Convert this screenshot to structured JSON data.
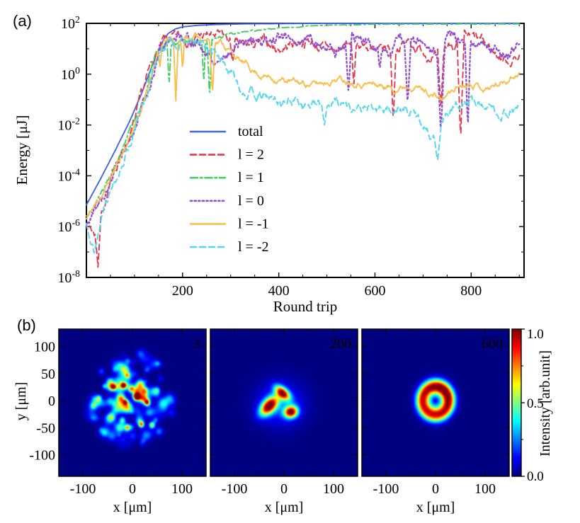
{
  "panel_a": {
    "label": "(a)",
    "x_ticks": [
      200,
      400,
      600,
      800
    ],
    "x_minor_step": 50,
    "y_tick_base": "10",
    "y_tick_exponents": [
      2,
      0,
      -2,
      -4,
      -6,
      -8
    ],
    "y_minor_exponents": [
      1,
      -1,
      -3,
      -5,
      -7
    ]
  },
  "panel_b": {
    "label": "(b)",
    "xlabel": "x [μm]",
    "ylabel": "y [μm]",
    "x_ticks": [
      -100,
      0,
      100
    ],
    "y_ticks": [
      100,
      50,
      0,
      -50,
      -100
    ],
    "minor_step": 50,
    "frame_label_color": "#E8751A",
    "colorbar": {
      "label": "Intensity [arb.unit]",
      "tick_labels": [
        "1.0",
        "0.5",
        "0.0"
      ],
      "tick_values": [
        1.0,
        0.5,
        0.0
      ],
      "minor_tick_values": [
        0.25,
        0.75
      ]
    }
  },
  "chart_data": [
    {
      "type": "line",
      "title": "",
      "xlabel": "Round trip",
      "ylabel": "Energy [μJ]",
      "x_range": [
        0,
        910
      ],
      "y_scale": "log",
      "y_log_range_exponents": [
        -8,
        2
      ],
      "grid": false,
      "legend_position": "inside center-left",
      "series": [
        {
          "name": "total",
          "color": "#4365E6",
          "style": "solid",
          "seed": 1,
          "noise": 0,
          "keypoints_log10": [
            [
              0,
              -5.15
            ],
            [
              30,
              -4.1
            ],
            [
              60,
              -3.0
            ],
            [
              90,
              -1.85
            ],
            [
              115,
              -0.75
            ],
            [
              135,
              0.25
            ],
            [
              150,
              0.95
            ],
            [
              160,
              1.35
            ],
            [
              170,
              1.6
            ],
            [
              185,
              1.78
            ],
            [
              200,
              1.86
            ],
            [
              230,
              1.92
            ],
            [
              270,
              1.955
            ],
            [
              330,
              1.98
            ],
            [
              450,
              1.995
            ],
            [
              900,
              2.005
            ]
          ]
        },
        {
          "name": "l = 2",
          "color": "#E23A4E",
          "style": "dashed",
          "seed": 7,
          "noise": 0.22,
          "keypoints_log10": [
            [
              0,
              -5.8
            ],
            [
              20,
              -6.3
            ],
            [
              30,
              -5.5
            ],
            [
              60,
              -3.7
            ],
            [
              100,
              -1.9
            ],
            [
              140,
              0.6
            ],
            [
              160,
              1.2
            ],
            [
              200,
              1.4
            ],
            [
              240,
              1.5
            ],
            [
              280,
              1.45
            ],
            [
              310,
              1.1
            ],
            [
              340,
              1.05
            ],
            [
              370,
              1.2
            ],
            [
              400,
              1.0
            ],
            [
              430,
              1.25
            ],
            [
              460,
              1.35
            ],
            [
              490,
              1.05
            ],
            [
              520,
              0.85
            ],
            [
              550,
              1.25
            ],
            [
              580,
              1.15
            ],
            [
              610,
              0.75
            ],
            [
              640,
              1.1
            ],
            [
              670,
              1.25
            ],
            [
              700,
              0.95
            ],
            [
              730,
              0.65
            ],
            [
              760,
              1.2
            ],
            [
              790,
              1.35
            ],
            [
              820,
              1.25
            ],
            [
              850,
              0.8
            ],
            [
              875,
              0.55
            ],
            [
              900,
              0.7
            ]
          ],
          "spikes": [
            [
              24,
              -7.6,
              6
            ],
            [
              304,
              0.45,
              5
            ],
            [
              556,
              -0.55,
              5
            ],
            [
              638,
              -1.9,
              6
            ],
            [
              737,
              -1.4,
              6
            ],
            [
              778,
              -2.6,
              7
            ]
          ]
        },
        {
          "name": "l = 1",
          "color": "#44CC66",
          "style": "dashdot",
          "seed": 3,
          "noise": 0.12,
          "noise_taper": true,
          "keypoints_log10": [
            [
              0,
              -5.6
            ],
            [
              40,
              -4.4
            ],
            [
              80,
              -2.8
            ],
            [
              120,
              -1.0
            ],
            [
              145,
              0.7
            ],
            [
              165,
              1.15
            ],
            [
              200,
              1.3
            ],
            [
              240,
              1.35
            ],
            [
              280,
              1.5
            ],
            [
              320,
              1.62
            ],
            [
              360,
              1.72
            ],
            [
              400,
              1.8
            ],
            [
              450,
              1.88
            ],
            [
              500,
              1.93
            ],
            [
              560,
              1.955
            ],
            [
              640,
              1.97
            ],
            [
              900,
              1.975
            ]
          ],
          "spikes": [
            [
              172,
              -0.5,
              4
            ],
            [
              244,
              -0.4,
              4
            ],
            [
              256,
              -0.95,
              5
            ]
          ]
        },
        {
          "name": "l = 0",
          "color": "#944FCE",
          "style": "dotted",
          "seed": 5,
          "noise": 0.24,
          "keypoints_log10": [
            [
              0,
              -6.0
            ],
            [
              40,
              -4.6
            ],
            [
              80,
              -3.0
            ],
            [
              120,
              -1.2
            ],
            [
              150,
              0.8
            ],
            [
              170,
              1.45
            ],
            [
              200,
              1.55
            ],
            [
              225,
              1.3
            ],
            [
              245,
              0.9
            ],
            [
              265,
              0.55
            ],
            [
              285,
              0.8
            ],
            [
              310,
              1.2
            ],
            [
              340,
              1.35
            ],
            [
              370,
              1.3
            ],
            [
              400,
              1.45
            ],
            [
              430,
              1.3
            ],
            [
              460,
              1.5
            ],
            [
              490,
              1.2
            ],
            [
              520,
              0.95
            ],
            [
              550,
              1.35
            ],
            [
              580,
              1.25
            ],
            [
              610,
              0.85
            ],
            [
              640,
              1.25
            ],
            [
              670,
              1.4
            ],
            [
              700,
              1.1
            ],
            [
              730,
              0.75
            ],
            [
              760,
              1.3
            ],
            [
              790,
              1.45
            ],
            [
              820,
              1.35
            ],
            [
              850,
              1.0
            ],
            [
              875,
              0.8
            ],
            [
              900,
              1.1
            ]
          ],
          "spikes": [
            [
              545,
              -0.8,
              6
            ],
            [
              610,
              0.2,
              4
            ],
            [
              668,
              -1.2,
              7
            ],
            [
              737,
              -2.3,
              8
            ],
            [
              793,
              -2.2,
              6
            ]
          ]
        },
        {
          "name": "l = -1",
          "color": "#F9BE4B",
          "style": "solid",
          "seed": 11,
          "noise": 0.14,
          "keypoints_log10": [
            [
              0,
              -5.7
            ],
            [
              40,
              -4.5
            ],
            [
              80,
              -2.9
            ],
            [
              120,
              -1.1
            ],
            [
              145,
              0.7
            ],
            [
              165,
              1.3
            ],
            [
              200,
              1.4
            ],
            [
              240,
              1.45
            ],
            [
              280,
              1.3
            ],
            [
              320,
              0.5
            ],
            [
              360,
              0.0
            ],
            [
              400,
              -0.2
            ],
            [
              440,
              -0.35
            ],
            [
              480,
              -0.4
            ],
            [
              520,
              -0.15
            ],
            [
              560,
              -0.25
            ],
            [
              600,
              -0.4
            ],
            [
              640,
              -0.55
            ],
            [
              680,
              -0.35
            ],
            [
              700,
              -0.6
            ],
            [
              740,
              -1.0
            ],
            [
              770,
              -0.5
            ],
            [
              800,
              -0.25
            ],
            [
              830,
              -0.55
            ],
            [
              860,
              -0.35
            ],
            [
              900,
              0.1
            ]
          ],
          "spikes": [
            [
              139,
              0.35,
              4
            ],
            [
              153,
              0.3,
              4
            ],
            [
              186,
              -1.05,
              5
            ],
            [
              200,
              0.15,
              4
            ],
            [
              262,
              -0.8,
              6
            ]
          ]
        },
        {
          "name": "l = -2",
          "color": "#53D6EF",
          "style": "dashed",
          "seed": 13,
          "noise": 0.22,
          "keypoints_log10": [
            [
              0,
              -5.9
            ],
            [
              20,
              -6.6
            ],
            [
              40,
              -4.8
            ],
            [
              80,
              -3.1
            ],
            [
              120,
              -1.3
            ],
            [
              145,
              0.6
            ],
            [
              165,
              1.15
            ],
            [
              200,
              1.25
            ],
            [
              240,
              1.1
            ],
            [
              280,
              0.6
            ],
            [
              320,
              -0.5
            ],
            [
              360,
              -0.9
            ],
            [
              400,
              -1.1
            ],
            [
              440,
              -1.0
            ],
            [
              480,
              -1.3
            ],
            [
              520,
              -1.0
            ],
            [
              560,
              -1.35
            ],
            [
              600,
              -1.5
            ],
            [
              640,
              -1.3
            ],
            [
              680,
              -1.6
            ],
            [
              720,
              -2.3
            ],
            [
              745,
              -1.5
            ],
            [
              780,
              -1.2
            ],
            [
              820,
              -1.1
            ],
            [
              860,
              -1.5
            ],
            [
              900,
              -1.3
            ]
          ],
          "spikes": [
            [
              16,
              -7.1,
              5
            ],
            [
              495,
              -2.0,
              6
            ],
            [
              730,
              -3.45,
              9
            ]
          ]
        }
      ]
    },
    {
      "type": "heatmap",
      "colormap": "jet",
      "xlabel": "x [μm]",
      "ylabel": "y [μm]",
      "value_label": "Intensity [arb.unit]",
      "value_range": [
        0.0,
        1.0
      ],
      "frames": [
        {
          "label": "3",
          "type": "speckle",
          "seed": 42,
          "n_spots": 110,
          "disk_radius": 88,
          "hot_spots": [
            [
              9,
              7,
              4.5,
              1.0
            ],
            [
              -18,
              28,
              4.2,
              0.88
            ],
            [
              30,
              -4,
              4,
              0.78
            ],
            [
              18,
              -44,
              4,
              0.7
            ],
            [
              -10,
              -50,
              4,
              0.65
            ],
            [
              -38,
              25,
              4,
              0.6
            ]
          ]
        },
        {
          "label": "200",
          "type": "blobs",
          "blobs": [
            [
              -30,
              -10,
              15,
              8.5,
              42,
              1.0
            ],
            [
              14,
              -21,
              9.5,
              7.5,
              10,
              0.97
            ],
            [
              -3,
              14,
              12,
              6.5,
              -38,
              0.9
            ],
            [
              -7,
              -6,
              32,
              28,
              0,
              0.2
            ]
          ]
        },
        {
          "label": "600",
          "type": "ring",
          "r0": 26,
          "sigma": 9.5,
          "amp": 0.88,
          "pedestal": 0.18,
          "pedestal_sigma": 17,
          "hot_angle_deg": 50,
          "hot_width": 0.9,
          "hot_boost": 0.18
        }
      ]
    }
  ]
}
